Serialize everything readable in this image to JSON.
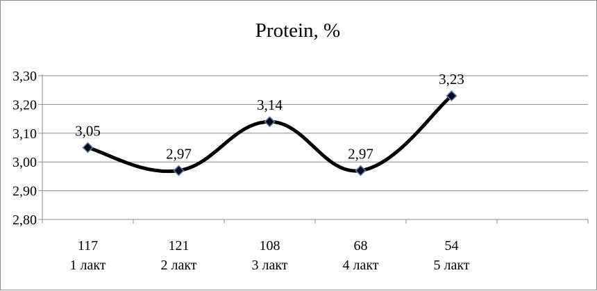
{
  "chart_data": {
    "type": "line",
    "title": "Protein, %",
    "categories": [
      [
        "117",
        "1 лакт"
      ],
      [
        "121",
        "2 лакт"
      ],
      [
        "108",
        "3 лакт"
      ],
      [
        "68",
        "4 лакт"
      ],
      [
        "54",
        "5 лакт"
      ]
    ],
    "n_slots": 6,
    "series": [
      {
        "values": [
          3.05,
          2.97,
          3.14,
          2.97,
          3.23
        ]
      }
    ],
    "data_labels": [
      "3,05",
      "2,97",
      "3,14",
      "2,97",
      "3,23"
    ],
    "y_ticks": [
      "2,80",
      "2,90",
      "3,00",
      "3,10",
      "3,20",
      "3,30"
    ],
    "y_tick_values": [
      2.8,
      2.9,
      3.0,
      3.1,
      3.2,
      3.3
    ],
    "ylim": [
      2.8,
      3.3
    ],
    "grid": true,
    "legend": "none",
    "colors": {
      "line": "#000000",
      "marker_fill": "#0a0a1a",
      "marker_stroke": "#5b7fb5",
      "grid": "#8c8c8c",
      "frame": "#8c8c8c"
    }
  }
}
